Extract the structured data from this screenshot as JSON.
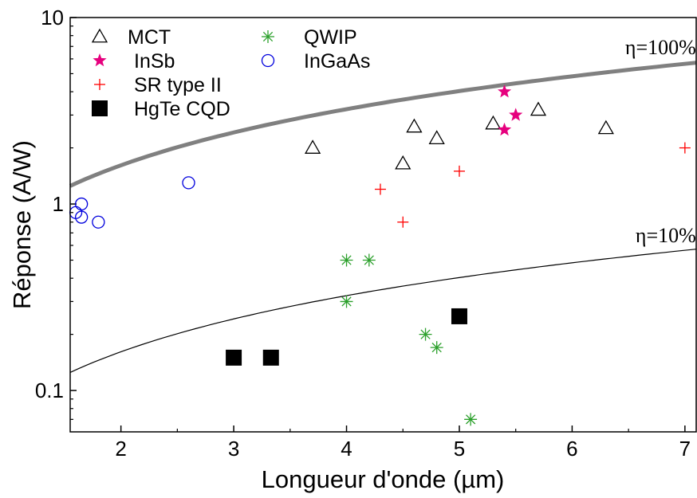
{
  "chart_data": {
    "type": "scatter",
    "xlabel": "Longueur d'onde (µm)",
    "ylabel": "Réponse (A/W)",
    "xlim": [
      1.55,
      7.1
    ],
    "ylim": [
      0.06,
      10
    ],
    "yscale": "log",
    "xticks": [
      2,
      3,
      4,
      5,
      6,
      7
    ],
    "xtick_labels": [
      "2",
      "3",
      "4",
      "5",
      "6",
      "7"
    ],
    "yticks": [
      0.1,
      1,
      10
    ],
    "ytick_labels": [
      "0.1",
      "1",
      "10"
    ],
    "grid": false,
    "legend_position": "top-left",
    "series": [
      {
        "name": "MCT",
        "marker": "open-triangle",
        "color": "#000000",
        "points": [
          [
            3.7,
            2.0
          ],
          [
            4.5,
            1.65
          ],
          [
            4.6,
            2.6
          ],
          [
            4.8,
            2.25
          ],
          [
            5.3,
            2.7
          ],
          [
            5.7,
            3.2
          ],
          [
            6.3,
            2.55
          ]
        ]
      },
      {
        "name": "InSb",
        "marker": "filled-star",
        "color": "#e6007e",
        "points": [
          [
            5.4,
            4.0
          ],
          [
            5.4,
            2.5
          ],
          [
            5.5,
            3.0
          ]
        ]
      },
      {
        "name": "SR type II",
        "marker": "plus",
        "color": "#ff0000",
        "points": [
          [
            4.3,
            1.2
          ],
          [
            4.5,
            0.8
          ],
          [
            5.0,
            1.5
          ],
          [
            7.0,
            2.0
          ]
        ]
      },
      {
        "name": "HgTe CQD",
        "marker": "filled-square",
        "color": "#000000",
        "points": [
          [
            3.0,
            0.15
          ],
          [
            3.33,
            0.15
          ],
          [
            5.0,
            0.25
          ]
        ]
      },
      {
        "name": "QWIP",
        "marker": "asterisk",
        "color": "#2ca02c",
        "points": [
          [
            4.0,
            0.5
          ],
          [
            4.2,
            0.5
          ],
          [
            4.0,
            0.3
          ],
          [
            4.7,
            0.2
          ],
          [
            4.8,
            0.17
          ],
          [
            5.1,
            0.07
          ]
        ]
      },
      {
        "name": "InGaAs",
        "marker": "open-circle",
        "color": "#0000dd",
        "points": [
          [
            1.6,
            0.9
          ],
          [
            1.65,
            1.0
          ],
          [
            1.65,
            0.85
          ],
          [
            1.8,
            0.8
          ],
          [
            2.6,
            1.3
          ]
        ]
      }
    ],
    "reference_curves": [
      {
        "label": "η=100%",
        "efficiency": 1.0,
        "color": "#808080",
        "style": "thick"
      },
      {
        "label": "η=10%",
        "efficiency": 0.1,
        "color": "#000000",
        "style": "thin"
      }
    ]
  }
}
